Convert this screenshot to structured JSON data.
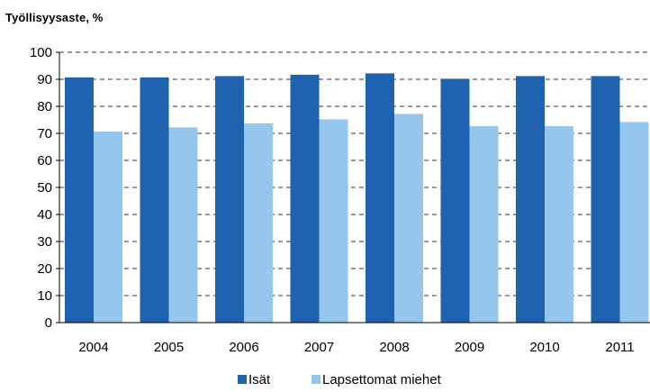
{
  "chart_data": {
    "type": "bar",
    "title": "Työllisyysaste, %",
    "categories": [
      "2004",
      "2005",
      "2006",
      "2007",
      "2008",
      "2009",
      "2010",
      "2011"
    ],
    "series": [
      {
        "name": "Isät",
        "color": "#1f63b0",
        "values": [
          90.7,
          90.7,
          91.2,
          91.7,
          92.2,
          90.2,
          91.2,
          91.2
        ]
      },
      {
        "name": "Lapsettomat miehet",
        "color": "#95c6ee",
        "values": [
          70.7,
          72.2,
          73.7,
          75.2,
          77.2,
          72.7,
          72.7,
          74.2
        ]
      }
    ],
    "ylim": [
      0,
      100
    ],
    "yticks": [
      0,
      10,
      20,
      30,
      40,
      50,
      60,
      70,
      80,
      90,
      100
    ],
    "grid": "dashed horizontal",
    "legend": "bottom"
  }
}
